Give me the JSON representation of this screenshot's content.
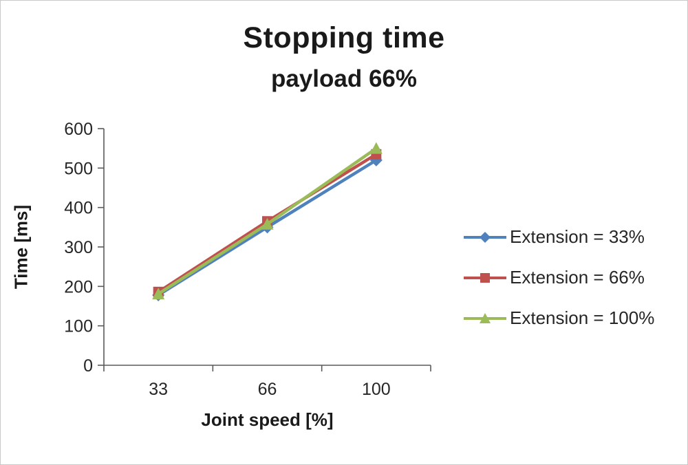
{
  "chart": {
    "title": "Stopping time",
    "subtitle": "payload 66%",
    "xlabel": "Joint speed [%]",
    "ylabel": "Time [ms]"
  },
  "chart_data": {
    "type": "line",
    "categories": [
      33,
      66,
      100
    ],
    "series": [
      {
        "name": "Extension = 33%",
        "color": "#4f81bd",
        "marker": "diamond",
        "values": [
          178,
          350,
          520
        ]
      },
      {
        "name": "Extension = 66%",
        "color": "#c0504d",
        "marker": "square",
        "values": [
          186,
          365,
          535
        ]
      },
      {
        "name": "Extension = 100%",
        "color": "#9bbb59",
        "marker": "triangle",
        "values": [
          181,
          358,
          550
        ]
      }
    ],
    "ylim": [
      0,
      600
    ],
    "ytick_step": 100,
    "grid": false,
    "legend_position": "right",
    "axis_color": "#595959",
    "tick_label_color": "#262626",
    "tick_font_size": 25
  }
}
